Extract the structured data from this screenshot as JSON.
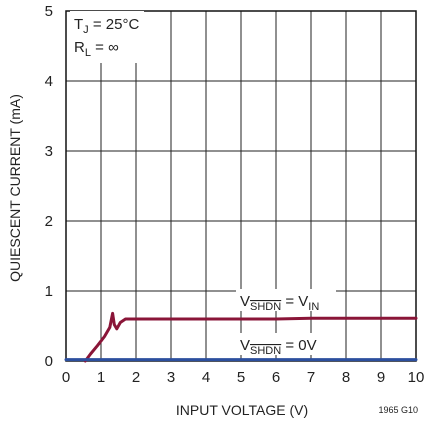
{
  "chart_data": {
    "type": "line",
    "xlabel": "INPUT VOLTAGE (V)",
    "ylabel": "QUIESCENT CURRENT (mA)",
    "xlim": [
      0,
      10
    ],
    "ylim": [
      0,
      5
    ],
    "x_ticks": [
      "0",
      "1",
      "2",
      "3",
      "4",
      "5",
      "6",
      "7",
      "8",
      "9",
      "10"
    ],
    "y_ticks": [
      "0",
      "1",
      "2",
      "3",
      "4",
      "5"
    ],
    "grid": true,
    "conditions": [
      {
        "main": "T",
        "sub": "J",
        "rest": " = 25°C"
      },
      {
        "main": "R",
        "sub": "L",
        "rest": " = ∞"
      }
    ],
    "figure_code": "1965 G10",
    "series": [
      {
        "name_main": "V",
        "name_sub": "SHDN",
        "name_rest": " = V",
        "name_rest_sub": "IN",
        "color": "#8a1538",
        "x": [
          0.55,
          0.7,
          0.9,
          1.1,
          1.25,
          1.33,
          1.38,
          1.45,
          1.55,
          1.7,
          2.0,
          3.0,
          4.0,
          5.0,
          6.0,
          7.0,
          8.0,
          9.0,
          10.0
        ],
        "y": [
          0.0,
          0.1,
          0.22,
          0.35,
          0.48,
          0.68,
          0.52,
          0.46,
          0.55,
          0.6,
          0.6,
          0.6,
          0.6,
          0.6,
          0.6,
          0.61,
          0.61,
          0.61,
          0.61
        ]
      },
      {
        "name_main": "V",
        "name_sub": "SHDN",
        "name_rest": " = 0V",
        "color": "#2c4f9e",
        "x": [
          0,
          10
        ],
        "y": [
          0.02,
          0.02
        ]
      }
    ]
  }
}
